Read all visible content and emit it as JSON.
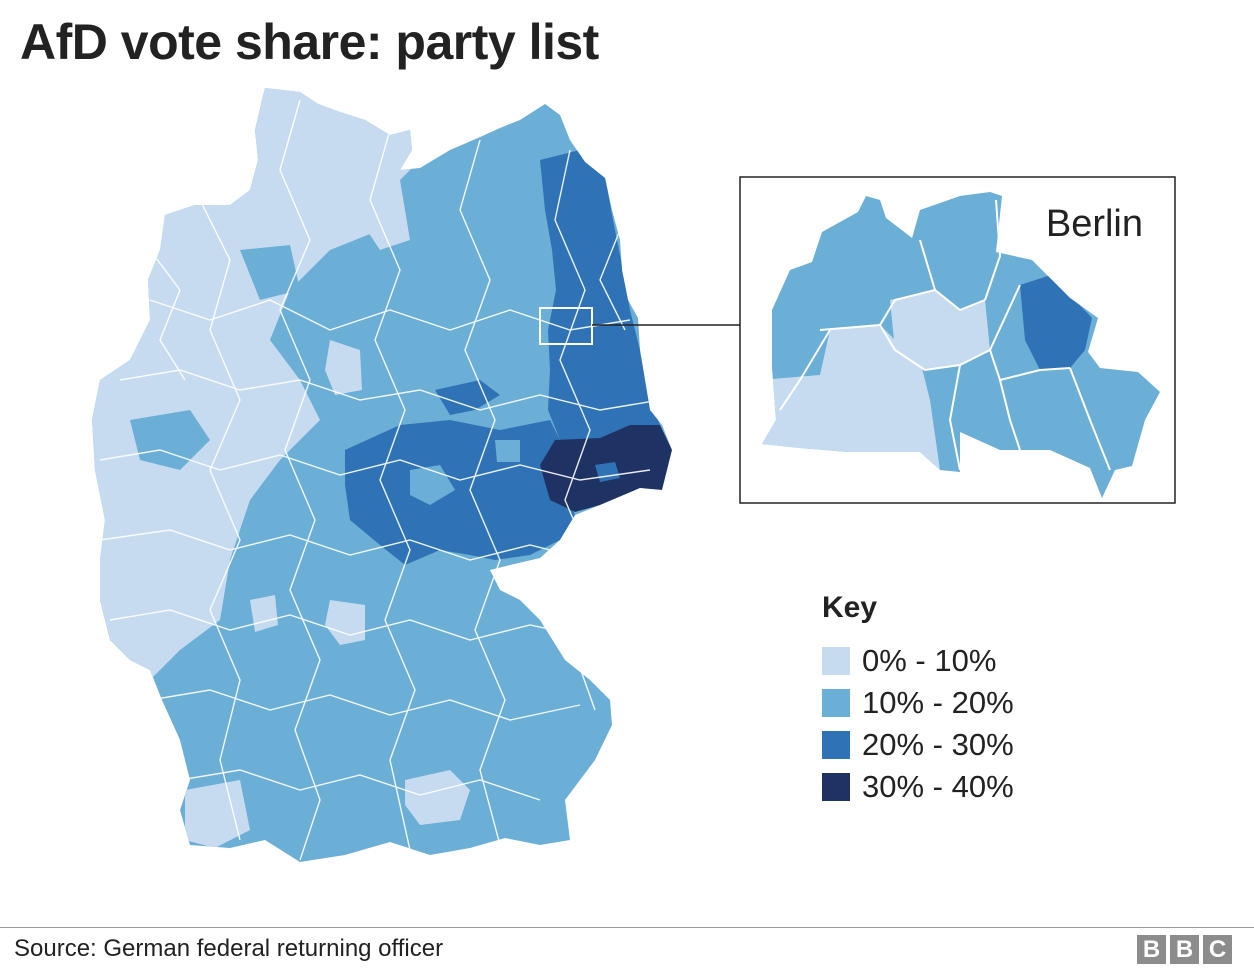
{
  "title": "AfD vote share: party list",
  "inset": {
    "label": "Berlin"
  },
  "legend": {
    "title": "Key",
    "items": [
      {
        "label": "0% - 10%",
        "color": "#c6dbef"
      },
      {
        "label": "10% - 20%",
        "color": "#6baed6"
      },
      {
        "label": "20% - 30%",
        "color": "#2f73b6"
      },
      {
        "label": "30% - 40%",
        "color": "#1f3264"
      }
    ]
  },
  "source": "Source: German federal returning officer",
  "logo": {
    "letters": [
      "B",
      "B",
      "C"
    ]
  },
  "colors": {
    "band_0_10": "#c6dbef",
    "band_10_20": "#6baed6",
    "band_20_30": "#2f73b6",
    "band_30_40": "#1f3264",
    "border": "#ffffff"
  }
}
